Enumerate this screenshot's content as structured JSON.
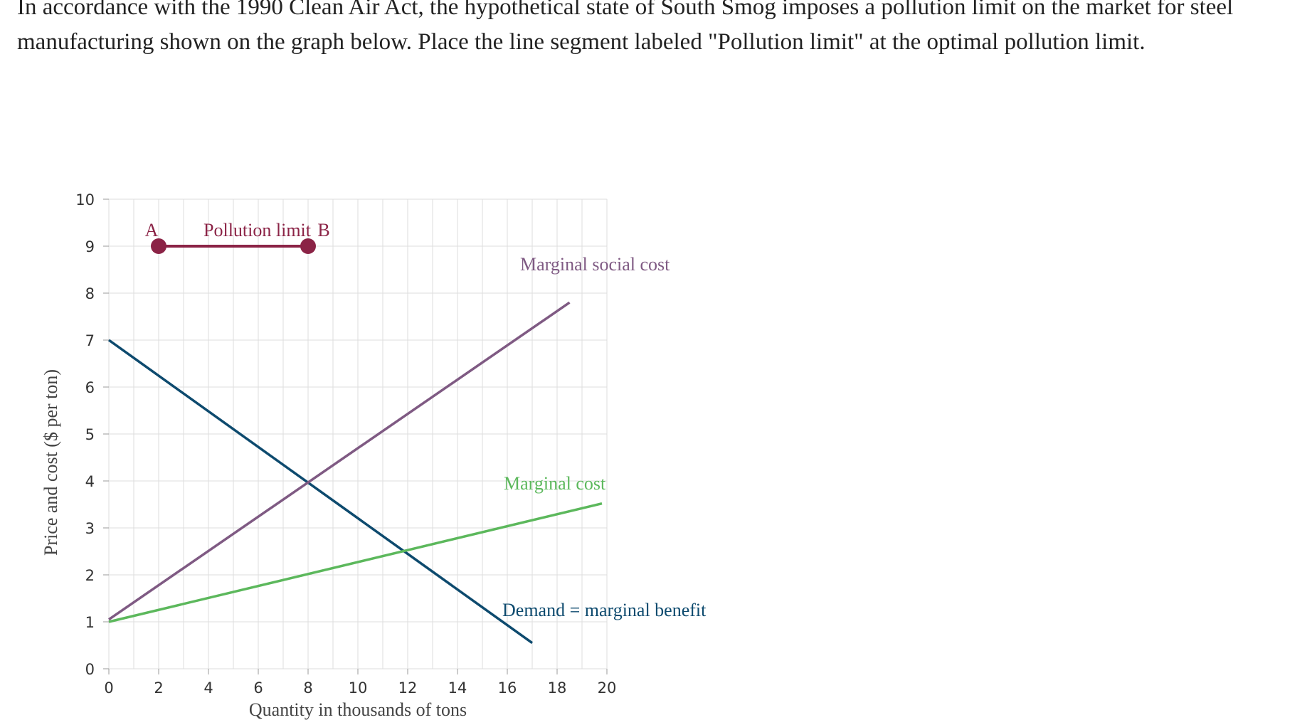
{
  "question_text": "In accordance with the 1990 Clean Air Act, the hypothetical state of South Smog imposes a pollution limit on the market for steel manufacturing shown on the graph below. Place the line segment labeled \"Pollution limit\" at the optimal pollution limit.",
  "chart_data": {
    "type": "line",
    "xlabel": "Quantity in thousands of tons",
    "ylabel": "Price and cost ($ per ton)",
    "xlim": [
      0,
      20
    ],
    "ylim": [
      0,
      10
    ],
    "x_ticks": [
      "0",
      "2",
      "4",
      "6",
      "8",
      "10",
      "12",
      "14",
      "16",
      "18",
      "20"
    ],
    "y_ticks": [
      "0",
      "1",
      "2",
      "3",
      "4",
      "5",
      "6",
      "7",
      "8",
      "9",
      "10"
    ],
    "grid": true,
    "series": [
      {
        "name": "Demand = marginal benefit",
        "color": "#0d4a6e",
        "points": [
          [
            0,
            7
          ],
          [
            17,
            0.55
          ]
        ]
      },
      {
        "name": "Marginal social cost",
        "color": "#7f5a83",
        "points": [
          [
            0,
            1.05
          ],
          [
            18.5,
            7.8
          ]
        ]
      },
      {
        "name": "Marginal cost",
        "color": "#5cb85c",
        "points": [
          [
            0,
            1
          ],
          [
            19.8,
            3.52
          ]
        ]
      }
    ],
    "series_labels": [
      "Marginal social cost",
      "Marginal cost",
      "Demand = marginal benefit"
    ],
    "pollution_limit": {
      "label": "Pollution limit",
      "color": "#8b2346",
      "y": 9,
      "point_a": {
        "label": "A",
        "x": 2
      },
      "point_b": {
        "label": "B",
        "x": 8
      }
    }
  }
}
